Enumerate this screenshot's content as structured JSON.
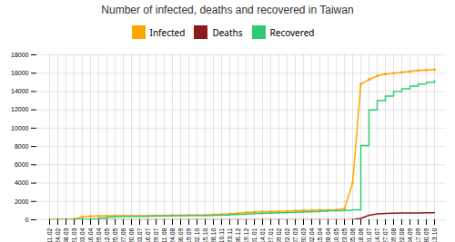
{
  "chart_data": {
    "type": "line",
    "title": "Number of infected, deaths and recovered in Taiwan",
    "categories": [
      "11.02",
      "24.02",
      "08.03",
      "21.03",
      "03.04",
      "16.04",
      "29.04",
      "12.05",
      "25.05",
      "07.06",
      "20.06",
      "03.07",
      "16.07",
      "29.07",
      "11.08",
      "24.08",
      "06.09",
      "19.09",
      "02.10",
      "15.10",
      "28.10",
      "10.11",
      "23.11",
      "06.12",
      "19.12",
      "01.01",
      "14.01",
      "27.01",
      "09.02",
      "22.02",
      "07.03",
      "20.03",
      "02.04",
      "15.04",
      "28.04",
      "10.05",
      "23.05",
      "05.06",
      "18.06",
      "01.07",
      "14.07",
      "27.07",
      "09.08",
      "22.08",
      "04.09",
      "17.09",
      "30.09",
      "13.10"
    ],
    "series": [
      {
        "name": "Infected",
        "color": "#FFA500",
        "marker": "circle",
        "line_style": "solid",
        "values": [
          0,
          30,
          50,
          77,
          329,
          393,
          429,
          440,
          442,
          445,
          447,
          449,
          451,
          467,
          480,
          490,
          505,
          514,
          524,
          531,
          569,
          600,
          631,
          720,
          780,
          840,
          870,
          893,
          919,
          950,
          990,
          1020,
          1050,
          1060,
          1070,
          1100,
          1200,
          4000,
          14800,
          15300,
          15700,
          15900,
          16000,
          16100,
          16200,
          16300,
          16350,
          16400
        ]
      },
      {
        "name": "Deaths",
        "color": "#8B1A1A",
        "line_style": "solid",
        "values": [
          0,
          0,
          1,
          1,
          5,
          6,
          6,
          6,
          6,
          6,
          6,
          6,
          6,
          7,
          7,
          7,
          7,
          7,
          7,
          7,
          7,
          7,
          7,
          7,
          7,
          7,
          7,
          8,
          8,
          9,
          9,
          10,
          10,
          10,
          10,
          12,
          12,
          20,
          150,
          500,
          650,
          700,
          720,
          730,
          740,
          750,
          760,
          770
        ]
      },
      {
        "name": "Recovered",
        "color": "#2ECC71",
        "line_style": "steps-post",
        "values": [
          0,
          0,
          20,
          50,
          70,
          100,
          200,
          300,
          350,
          360,
          370,
          380,
          390,
          420,
          430,
          440,
          450,
          460,
          463,
          465,
          500,
          530,
          565,
          600,
          650,
          680,
          710,
          740,
          770,
          800,
          830,
          860,
          900,
          950,
          980,
          1000,
          1050,
          1100,
          8100,
          12000,
          13000,
          13500,
          14000,
          14300,
          14600,
          14800,
          15000,
          15200
        ]
      }
    ],
    "ylim": [
      0,
      18000
    ],
    "yticks": [
      0,
      2000,
      4000,
      6000,
      8000,
      10000,
      12000,
      14000,
      16000,
      18000
    ],
    "grid": true,
    "legend": "top"
  }
}
